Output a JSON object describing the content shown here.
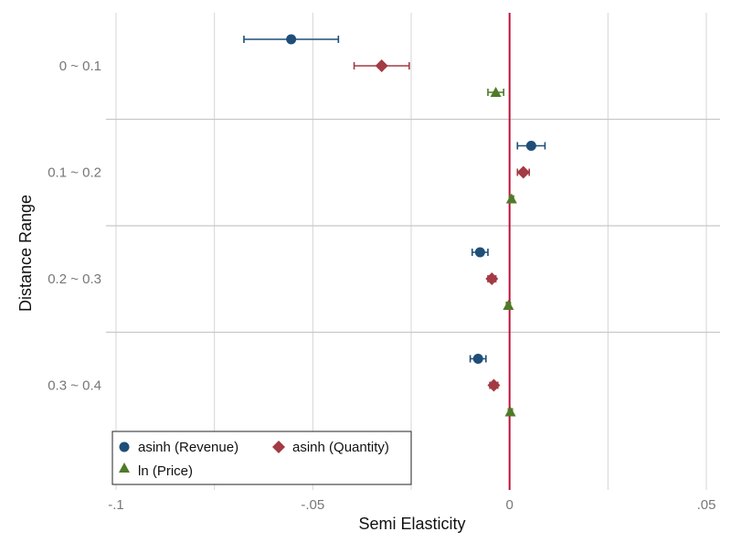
{
  "chart_data": {
    "type": "scatter",
    "title": "",
    "xlabel": "Semi Elasticity",
    "ylabel": "Distance Range",
    "xlim": [
      -0.1,
      0.05
    ],
    "x_ticks": [
      {
        "value": -0.1,
        "label": "-.1"
      },
      {
        "value": -0.05,
        "label": "-.05"
      },
      {
        "value": 0,
        "label": "0"
      },
      {
        "value": 0.05,
        "label": ".05"
      }
    ],
    "categories": [
      "0 ~ 0.1",
      "0.1 ~ 0.2",
      "0.2 ~ 0.3",
      "0.3 ~ 0.4"
    ],
    "reference_line": {
      "x": 0,
      "color": "#c0103c"
    },
    "series": [
      {
        "name": "asinh (Revenue)",
        "marker": "circle",
        "color": "#1f4e79",
        "points": [
          {
            "estimate": -0.0555,
            "ci_low": -0.0675,
            "ci_high": -0.0435
          },
          {
            "estimate": 0.0055,
            "ci_low": 0.002,
            "ci_high": 0.009
          },
          {
            "estimate": -0.0075,
            "ci_low": -0.0095,
            "ci_high": -0.0055
          },
          {
            "estimate": -0.008,
            "ci_low": -0.01,
            "ci_high": -0.006
          }
        ]
      },
      {
        "name": "asinh (Quantity)",
        "marker": "diamond",
        "color": "#a33a44",
        "points": [
          {
            "estimate": -0.0325,
            "ci_low": -0.0395,
            "ci_high": -0.0255
          },
          {
            "estimate": 0.0035,
            "ci_low": 0.002,
            "ci_high": 0.005
          },
          {
            "estimate": -0.0045,
            "ci_low": -0.0055,
            "ci_high": -0.0035
          },
          {
            "estimate": -0.004,
            "ci_low": -0.005,
            "ci_high": -0.003
          }
        ]
      },
      {
        "name": "ln (Price)",
        "marker": "triangle",
        "color": "#4f7a28",
        "points": [
          {
            "estimate": -0.0035,
            "ci_low": -0.0055,
            "ci_high": -0.0015
          },
          {
            "estimate": 0.0005,
            "ci_low": 0.0,
            "ci_high": 0.001
          },
          {
            "estimate": -0.0003,
            "ci_low": -0.0008,
            "ci_high": 0.0002
          },
          {
            "estimate": 0.0002,
            "ci_low": -0.0003,
            "ci_high": 0.0007
          }
        ]
      }
    ],
    "legend": {
      "position": "bottom-left",
      "entries": [
        "asinh (Revenue)",
        "asinh (Quantity)",
        "ln (Price)"
      ]
    }
  }
}
